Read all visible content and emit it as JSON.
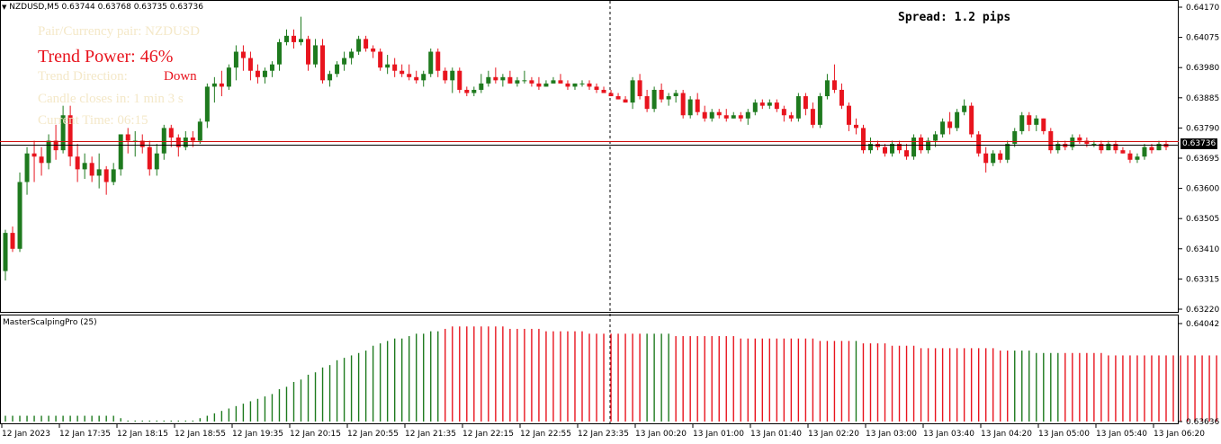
{
  "header": {
    "symbol_info": "NZDUSD,M5  0.63744 0.63768 0.63735 0.63736",
    "spread": "Spread: 1.2 pips"
  },
  "overlay": {
    "pair_label": "Pair/Currency pair: NZDUSD",
    "trend_power": "Trend Power: 46%",
    "trend_direction_label": "Trend Direction:",
    "trend_direction_value": "Down",
    "candle_closes": "Candle closes in: 1 min 3 s",
    "current_time": "Current Time: 06:15"
  },
  "indicator": {
    "title": "MasterScalpingPro (25)"
  },
  "price_axis": {
    "ticks": [
      "0.64170",
      "0.64075",
      "0.63980",
      "0.63885",
      "0.63790",
      "0.63695",
      "0.63600",
      "0.63505",
      "0.63410",
      "0.63315",
      "0.63220"
    ],
    "current_price": "0.63736"
  },
  "indicator_axis": {
    "ticks": [
      "0.64042",
      "0.63636"
    ]
  },
  "time_axis": {
    "ticks": [
      "12 Jan 2023",
      "12 Jan 17:35",
      "12 Jan 18:15",
      "12 Jan 18:55",
      "12 Jan 19:35",
      "12 Jan 20:15",
      "12 Jan 20:55",
      "12 Jan 21:35",
      "12 Jan 22:15",
      "12 Jan 22:55",
      "12 Jan 23:35",
      "13 Jan 00:20",
      "13 Jan 01:00",
      "13 Jan 01:40",
      "13 Jan 02:20",
      "13 Jan 03:00",
      "13 Jan 03:40",
      "13 Jan 04:20",
      "13 Jan 05:00",
      "13 Jan 05:40",
      "13 Jan 06:20"
    ]
  },
  "colors": {
    "bull": "#1e7a1e",
    "bear": "#e8141e",
    "bid_line": "#d01010",
    "ask_line": "#000000"
  },
  "chart_data": {
    "type": "candlestick",
    "price_range": [
      0.6322,
      0.6417
    ],
    "candles": [
      [
        0.6334,
        0.6347,
        0.6331,
        0.6346
      ],
      [
        0.6346,
        0.6348,
        0.634,
        0.6341
      ],
      [
        0.6341,
        0.6365,
        0.634,
        0.6362
      ],
      [
        0.6362,
        0.6373,
        0.6358,
        0.6371
      ],
      [
        0.6371,
        0.6375,
        0.6362,
        0.637
      ],
      [
        0.637,
        0.6373,
        0.6364,
        0.6368
      ],
      [
        0.6368,
        0.6377,
        0.6366,
        0.6375
      ],
      [
        0.6375,
        0.638,
        0.6369,
        0.6372
      ],
      [
        0.6372,
        0.6386,
        0.6371,
        0.6383
      ],
      [
        0.6383,
        0.6386,
        0.6367,
        0.637
      ],
      [
        0.637,
        0.6374,
        0.6362,
        0.6366
      ],
      [
        0.6366,
        0.6371,
        0.6363,
        0.6368
      ],
      [
        0.6368,
        0.637,
        0.6362,
        0.6364
      ],
      [
        0.6364,
        0.6371,
        0.636,
        0.6366
      ],
      [
        0.6366,
        0.6367,
        0.6358,
        0.6362
      ],
      [
        0.6362,
        0.6368,
        0.6361,
        0.6366
      ],
      [
        0.6366,
        0.6377,
        0.6364,
        0.6377
      ],
      [
        0.6377,
        0.6379,
        0.6371,
        0.6375
      ],
      [
        0.6375,
        0.6378,
        0.637,
        0.6375
      ],
      [
        0.6375,
        0.6377,
        0.6371,
        0.6373
      ],
      [
        0.6373,
        0.6375,
        0.6364,
        0.6366
      ],
      [
        0.6366,
        0.6374,
        0.6364,
        0.6371
      ],
      [
        0.6371,
        0.638,
        0.6369,
        0.6379
      ],
      [
        0.6379,
        0.638,
        0.6373,
        0.6376
      ],
      [
        0.6376,
        0.6377,
        0.637,
        0.6373
      ],
      [
        0.6373,
        0.6378,
        0.6372,
        0.6376
      ],
      [
        0.6376,
        0.6378,
        0.6373,
        0.6375
      ],
      [
        0.6375,
        0.6382,
        0.6374,
        0.6381
      ],
      [
        0.6381,
        0.6393,
        0.6379,
        0.6392
      ],
      [
        0.6392,
        0.6395,
        0.6387,
        0.6393
      ],
      [
        0.6393,
        0.6397,
        0.6389,
        0.6392
      ],
      [
        0.6392,
        0.6399,
        0.6391,
        0.6398
      ],
      [
        0.6398,
        0.6405,
        0.6394,
        0.6403
      ],
      [
        0.6403,
        0.6405,
        0.6397,
        0.6401
      ],
      [
        0.6401,
        0.6403,
        0.6394,
        0.6397
      ],
      [
        0.6397,
        0.6399,
        0.6393,
        0.6395
      ],
      [
        0.6395,
        0.6398,
        0.6393,
        0.6397
      ],
      [
        0.6397,
        0.64,
        0.6395,
        0.6399
      ],
      [
        0.6399,
        0.6407,
        0.6397,
        0.6406
      ],
      [
        0.6406,
        0.641,
        0.6405,
        0.6408
      ],
      [
        0.6408,
        0.641,
        0.6404,
        0.6406
      ],
      [
        0.6406,
        0.6414,
        0.6405,
        0.6407
      ],
      [
        0.6407,
        0.6408,
        0.6397,
        0.6399
      ],
      [
        0.6399,
        0.6407,
        0.6398,
        0.6405
      ],
      [
        0.6405,
        0.6407,
        0.6393,
        0.6394
      ],
      [
        0.6394,
        0.6397,
        0.6392,
        0.6396
      ],
      [
        0.6396,
        0.64,
        0.6395,
        0.6399
      ],
      [
        0.6399,
        0.6403,
        0.6397,
        0.6401
      ],
      [
        0.6401,
        0.6404,
        0.6399,
        0.6403
      ],
      [
        0.6403,
        0.6408,
        0.6402,
        0.6407
      ],
      [
        0.6407,
        0.6408,
        0.6403,
        0.6404
      ],
      [
        0.6404,
        0.6405,
        0.6401,
        0.6403
      ],
      [
        0.6403,
        0.6404,
        0.6397,
        0.6398
      ],
      [
        0.6398,
        0.6402,
        0.6396,
        0.6399
      ],
      [
        0.6399,
        0.6401,
        0.6395,
        0.6397
      ],
      [
        0.6397,
        0.6399,
        0.6395,
        0.6396
      ],
      [
        0.6396,
        0.6399,
        0.6394,
        0.6395
      ],
      [
        0.6395,
        0.6397,
        0.6393,
        0.6394
      ],
      [
        0.6394,
        0.6397,
        0.6392,
        0.6396
      ],
      [
        0.6396,
        0.6404,
        0.6395,
        0.6403
      ],
      [
        0.6403,
        0.6404,
        0.6395,
        0.6397
      ],
      [
        0.6397,
        0.6398,
        0.6393,
        0.6394
      ],
      [
        0.6394,
        0.6398,
        0.639,
        0.6397
      ],
      [
        0.6397,
        0.6398,
        0.639,
        0.6391
      ],
      [
        0.6391,
        0.6392,
        0.6389,
        0.639
      ],
      [
        0.639,
        0.6392,
        0.6389,
        0.6391
      ],
      [
        0.6391,
        0.6396,
        0.639,
        0.6393
      ],
      [
        0.6393,
        0.6397,
        0.6392,
        0.6395
      ],
      [
        0.6395,
        0.6398,
        0.6393,
        0.6394
      ],
      [
        0.6394,
        0.6396,
        0.6392,
        0.6395
      ],
      [
        0.6395,
        0.6397,
        0.6393,
        0.6393
      ],
      [
        0.6393,
        0.6395,
        0.6392,
        0.6394
      ],
      [
        0.6394,
        0.6397,
        0.6393,
        0.6394
      ],
      [
        0.6394,
        0.6395,
        0.6392,
        0.6393
      ],
      [
        0.6393,
        0.6395,
        0.6391,
        0.6392
      ],
      [
        0.6392,
        0.6394,
        0.6392,
        0.6393
      ],
      [
        0.6393,
        0.6395,
        0.6393,
        0.6394
      ],
      [
        0.6394,
        0.6396,
        0.6393,
        0.6393
      ],
      [
        0.6393,
        0.6394,
        0.6391,
        0.6392
      ],
      [
        0.6392,
        0.6393,
        0.6391,
        0.6393
      ],
      [
        0.6393,
        0.6394,
        0.6392,
        0.6393
      ],
      [
        0.6393,
        0.6394,
        0.6391,
        0.6392
      ],
      [
        0.6392,
        0.6393,
        0.639,
        0.6391
      ],
      [
        0.6391,
        0.6392,
        0.639,
        0.639
      ],
      [
        0.639,
        0.6391,
        0.6389,
        0.6389
      ],
      [
        0.6389,
        0.639,
        0.6388,
        0.6388
      ],
      [
        0.6388,
        0.6389,
        0.6387,
        0.6387
      ],
      [
        0.6387,
        0.6395,
        0.6385,
        0.6394
      ],
      [
        0.6394,
        0.6396,
        0.6388,
        0.6389
      ],
      [
        0.6389,
        0.6391,
        0.6384,
        0.6385
      ],
      [
        0.6385,
        0.6392,
        0.6384,
        0.6391
      ],
      [
        0.6391,
        0.6393,
        0.6387,
        0.6388
      ],
      [
        0.6388,
        0.639,
        0.6386,
        0.6389
      ],
      [
        0.6389,
        0.6391,
        0.6387,
        0.639
      ],
      [
        0.639,
        0.6391,
        0.6382,
        0.6383
      ],
      [
        0.6383,
        0.6389,
        0.6382,
        0.6388
      ],
      [
        0.6388,
        0.639,
        0.6383,
        0.6384
      ],
      [
        0.6384,
        0.6386,
        0.6381,
        0.6382
      ],
      [
        0.6382,
        0.6385,
        0.6381,
        0.6384
      ],
      [
        0.6384,
        0.6385,
        0.6382,
        0.6383
      ],
      [
        0.6383,
        0.6385,
        0.6381,
        0.6382
      ],
      [
        0.6382,
        0.6384,
        0.6382,
        0.6383
      ],
      [
        0.6383,
        0.6384,
        0.6381,
        0.6382
      ],
      [
        0.6382,
        0.6385,
        0.638,
        0.6384
      ],
      [
        0.6384,
        0.6388,
        0.6383,
        0.6387
      ],
      [
        0.6387,
        0.6388,
        0.6385,
        0.6386
      ],
      [
        0.6386,
        0.6388,
        0.6385,
        0.6387
      ],
      [
        0.6387,
        0.6388,
        0.6384,
        0.6385
      ],
      [
        0.6385,
        0.6386,
        0.6381,
        0.6383
      ],
      [
        0.6383,
        0.6384,
        0.6381,
        0.6382
      ],
      [
        0.6382,
        0.639,
        0.6381,
        0.6389
      ],
      [
        0.6389,
        0.639,
        0.6383,
        0.6385
      ],
      [
        0.6385,
        0.6387,
        0.6379,
        0.638
      ],
      [
        0.638,
        0.639,
        0.6379,
        0.6389
      ],
      [
        0.6389,
        0.6396,
        0.6388,
        0.6394
      ],
      [
        0.6394,
        0.6399,
        0.639,
        0.6391
      ],
      [
        0.6391,
        0.6393,
        0.6385,
        0.6386
      ],
      [
        0.6386,
        0.6387,
        0.6378,
        0.638
      ],
      [
        0.638,
        0.6382,
        0.6377,
        0.6379
      ],
      [
        0.6379,
        0.638,
        0.6371,
        0.6372
      ],
      [
        0.6372,
        0.6376,
        0.6371,
        0.6374
      ],
      [
        0.6374,
        0.6375,
        0.6372,
        0.6373
      ],
      [
        0.6373,
        0.6374,
        0.637,
        0.6371
      ],
      [
        0.6371,
        0.6375,
        0.637,
        0.6374
      ],
      [
        0.6374,
        0.6375,
        0.6371,
        0.6372
      ],
      [
        0.6372,
        0.6374,
        0.6369,
        0.637
      ],
      [
        0.637,
        0.6377,
        0.6369,
        0.6376
      ],
      [
        0.6376,
        0.6377,
        0.6371,
        0.6372
      ],
      [
        0.6372,
        0.6376,
        0.6371,
        0.6375
      ],
      [
        0.6375,
        0.6378,
        0.6373,
        0.6377
      ],
      [
        0.6377,
        0.6382,
        0.6376,
        0.6381
      ],
      [
        0.6381,
        0.6384,
        0.6377,
        0.6379
      ],
      [
        0.6379,
        0.6385,
        0.6378,
        0.6384
      ],
      [
        0.6384,
        0.6388,
        0.6383,
        0.6386
      ],
      [
        0.6386,
        0.6387,
        0.6376,
        0.6377
      ],
      [
        0.6377,
        0.6378,
        0.637,
        0.6371
      ],
      [
        0.6371,
        0.6373,
        0.6365,
        0.6368
      ],
      [
        0.6368,
        0.6372,
        0.6367,
        0.6371
      ],
      [
        0.6371,
        0.6372,
        0.6368,
        0.6369
      ],
      [
        0.6369,
        0.6375,
        0.6368,
        0.6374
      ],
      [
        0.6374,
        0.6379,
        0.6373,
        0.6378
      ],
      [
        0.6378,
        0.6384,
        0.6377,
        0.6383
      ],
      [
        0.6383,
        0.6384,
        0.6378,
        0.638
      ],
      [
        0.638,
        0.6383,
        0.6378,
        0.6382
      ],
      [
        0.6382,
        0.6382,
        0.6377,
        0.6378
      ],
      [
        0.6378,
        0.6379,
        0.6371,
        0.6372
      ],
      [
        0.6372,
        0.6375,
        0.6371,
        0.6374
      ],
      [
        0.6374,
        0.6375,
        0.6372,
        0.6373
      ],
      [
        0.6373,
        0.6377,
        0.6372,
        0.6376
      ],
      [
        0.6376,
        0.6377,
        0.6374,
        0.6375
      ],
      [
        0.6375,
        0.6376,
        0.6373,
        0.6374
      ],
      [
        0.6374,
        0.6375,
        0.6373,
        0.6374
      ],
      [
        0.6374,
        0.6375,
        0.6371,
        0.6372
      ],
      [
        0.6372,
        0.6375,
        0.6372,
        0.6374
      ],
      [
        0.6374,
        0.6375,
        0.6371,
        0.6372
      ],
      [
        0.6372,
        0.6373,
        0.6371,
        0.6371
      ],
      [
        0.6371,
        0.6372,
        0.6368,
        0.6369
      ],
      [
        0.6369,
        0.6371,
        0.6368,
        0.637
      ],
      [
        0.637,
        0.6374,
        0.6369,
        0.6373
      ],
      [
        0.6373,
        0.6374,
        0.6371,
        0.6372
      ],
      [
        0.6372,
        0.6375,
        0.6372,
        0.6374
      ],
      [
        0.6374,
        0.6375,
        0.6372,
        0.6373
      ]
    ],
    "indicator_range": [
      0.63636,
      0.64042
    ],
    "indicator_values": [
      0.6366,
      0.6366,
      0.6366,
      0.6366,
      0.6366,
      0.6366,
      0.6366,
      0.6366,
      0.6366,
      0.6366,
      0.6366,
      0.6366,
      0.6366,
      0.6366,
      0.6366,
      0.6366,
      0.6365,
      0.6364,
      0.6364,
      0.6364,
      0.6364,
      0.6364,
      0.6364,
      0.6364,
      0.6364,
      0.6364,
      0.6364,
      0.6365,
      0.6366,
      0.6367,
      0.6368,
      0.6369,
      0.637,
      0.6371,
      0.6372,
      0.6373,
      0.6374,
      0.6375,
      0.6377,
      0.6378,
      0.638,
      0.6381,
      0.6383,
      0.6384,
      0.6386,
      0.6387,
      0.6389,
      0.639,
      0.6391,
      0.6392,
      0.6393,
      0.6395,
      0.6396,
      0.6397,
      0.6398,
      0.6398,
      0.6399,
      0.64,
      0.64,
      0.6401,
      0.6401,
      0.6402,
      0.6403,
      0.6403,
      0.6403,
      0.6403,
      0.6403,
      0.6403,
      0.6403,
      0.6403,
      0.6402,
      0.6402,
      0.6402,
      0.6402,
      0.6402,
      0.6401,
      0.6401,
      0.6401,
      0.6401,
      0.6401,
      0.6401,
      0.64,
      0.64,
      0.64,
      0.64,
      0.64,
      0.64,
      0.64,
      0.64,
      0.64,
      0.64,
      0.64,
      0.64,
      0.6399,
      0.6399,
      0.6399,
      0.6399,
      0.6399,
      0.6399,
      0.6399,
      0.6399,
      0.6399,
      0.6398,
      0.6398,
      0.6398,
      0.6398,
      0.6398,
      0.6398,
      0.6398,
      0.6398,
      0.6398,
      0.6398,
      0.6398,
      0.6397,
      0.6397,
      0.6397,
      0.6397,
      0.6397,
      0.6397,
      0.6396,
      0.6396,
      0.6396,
      0.6396,
      0.6395,
      0.6395,
      0.6395,
      0.6395,
      0.6394,
      0.6394,
      0.6394,
      0.6394,
      0.6394,
      0.6394,
      0.6394,
      0.6394,
      0.6394,
      0.6394,
      0.6394,
      0.6393,
      0.6393,
      0.6393,
      0.6393,
      0.6393,
      0.6392,
      0.6392,
      0.6392,
      0.6392,
      0.6392,
      0.6392,
      0.6392,
      0.6392,
      0.6392,
      0.6392,
      0.6391,
      0.6391,
      0.6391,
      0.6391,
      0.6391,
      0.6391,
      0.6391,
      0.6391,
      0.6391,
      0.6391,
      0.6391,
      0.6391,
      0.6391,
      0.6391,
      0.6391,
      0.6391
    ],
    "indicator_colors": [
      "g",
      "g",
      "g",
      "g",
      "g",
      "g",
      "g",
      "g",
      "g",
      "g",
      "g",
      "g",
      "g",
      "g",
      "g",
      "g",
      "g",
      "g",
      "g",
      "g",
      "g",
      "g",
      "g",
      "g",
      "g",
      "g",
      "g",
      "g",
      "g",
      "g",
      "g",
      "g",
      "g",
      "g",
      "g",
      "g",
      "g",
      "g",
      "g",
      "g",
      "g",
      "g",
      "g",
      "g",
      "g",
      "g",
      "g",
      "g",
      "g",
      "g",
      "g",
      "g",
      "g",
      "g",
      "g",
      "g",
      "g",
      "g",
      "g",
      "g",
      "g",
      "r",
      "r",
      "r",
      "r",
      "r",
      "r",
      "r",
      "r",
      "r",
      "r",
      "r",
      "r",
      "r",
      "r",
      "r",
      "r",
      "r",
      "r",
      "r",
      "r",
      "r",
      "r",
      "r",
      "r",
      "r",
      "r",
      "r",
      "r",
      "g",
      "g",
      "g",
      "g",
      "r",
      "r",
      "r",
      "r",
      "r",
      "r",
      "r",
      "r",
      "r",
      "r",
      "r",
      "r",
      "r",
      "r",
      "r",
      "r",
      "r",
      "r",
      "r",
      "r",
      "r",
      "r",
      "r",
      "r",
      "r",
      "g",
      "r",
      "r",
      "r",
      "r",
      "r",
      "r",
      "r",
      "r",
      "r",
      "r",
      "r",
      "r",
      "r",
      "r",
      "r",
      "r",
      "r",
      "r",
      "r",
      "r",
      "r",
      "g",
      "g",
      "g",
      "g",
      "g",
      "g",
      "g",
      "r",
      "r",
      "r",
      "r",
      "r",
      "r",
      "r",
      "r",
      "r",
      "r",
      "r",
      "r",
      "r",
      "r",
      "r",
      "r",
      "r",
      "r",
      "r",
      "r",
      "r"
    ]
  }
}
